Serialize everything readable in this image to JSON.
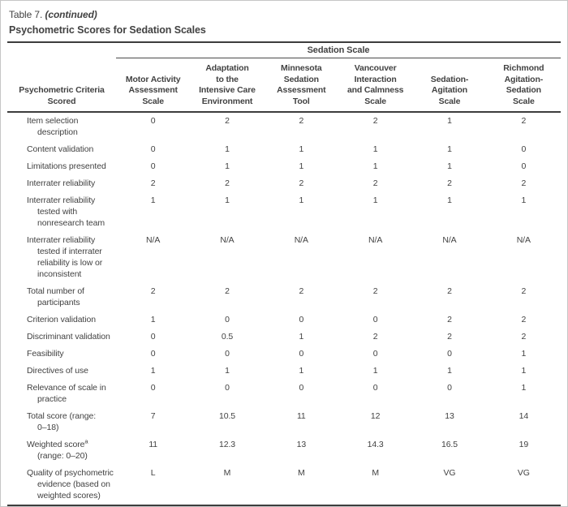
{
  "caption": {
    "label": "Table 7.",
    "continued": "(continued)",
    "title": "Psychometric Scores for Sedation Scales"
  },
  "table": {
    "span_header": "Sedation Scale",
    "criteria_header_lines": [
      "Psychometric Criteria",
      "Scored"
    ],
    "columns": [
      {
        "lines": [
          "Motor Activity",
          "Assessment",
          "Scale"
        ]
      },
      {
        "lines": [
          "Adaptation",
          "to the",
          "Intensive Care",
          "Environment"
        ]
      },
      {
        "lines": [
          "Minnesota",
          "Sedation",
          "Assessment",
          "Tool"
        ]
      },
      {
        "lines": [
          "Vancouver",
          "Interaction",
          "and Calmness",
          "Scale"
        ]
      },
      {
        "lines": [
          "Sedation-",
          "Agitation",
          "Scale"
        ]
      },
      {
        "lines": [
          "Richmond",
          "Agitation-",
          "Sedation",
          "Scale"
        ]
      }
    ],
    "rows": [
      {
        "criteria_lines": [
          "Item selection",
          "description"
        ],
        "values": [
          "0",
          "2",
          "2",
          "2",
          "1",
          "2"
        ]
      },
      {
        "criteria_lines": [
          "Content validation"
        ],
        "values": [
          "0",
          "1",
          "1",
          "1",
          "1",
          "0"
        ]
      },
      {
        "criteria_lines": [
          "Limitations presented"
        ],
        "values": [
          "0",
          "1",
          "1",
          "1",
          "1",
          "0"
        ]
      },
      {
        "criteria_lines": [
          "Interrater reliability"
        ],
        "values": [
          "2",
          "2",
          "2",
          "2",
          "2",
          "2"
        ]
      },
      {
        "criteria_lines": [
          "Interrater reliability",
          "tested with",
          "nonresearch team"
        ],
        "values": [
          "1",
          "1",
          "1",
          "1",
          "1",
          "1"
        ]
      },
      {
        "criteria_lines": [
          "Interrater reliability",
          "tested if interrater",
          "reliability is low or",
          "inconsistent"
        ],
        "values": [
          "N/A",
          "N/A",
          "N/A",
          "N/A",
          "N/A",
          "N/A"
        ]
      },
      {
        "criteria_lines": [
          "Total number of",
          "participants"
        ],
        "values": [
          "2",
          "2",
          "2",
          "2",
          "2",
          "2"
        ]
      },
      {
        "criteria_lines": [
          "Criterion validation"
        ],
        "values": [
          "1",
          "0",
          "0",
          "0",
          "2",
          "2"
        ]
      },
      {
        "criteria_lines": [
          "Discriminant validation"
        ],
        "values": [
          "0",
          "0.5",
          "1",
          "2",
          "2",
          "2"
        ]
      },
      {
        "criteria_lines": [
          "Feasibility"
        ],
        "values": [
          "0",
          "0",
          "0",
          "0",
          "0",
          "1"
        ]
      },
      {
        "criteria_lines": [
          "Directives of use"
        ],
        "values": [
          "1",
          "1",
          "1",
          "1",
          "1",
          "1"
        ]
      },
      {
        "criteria_lines": [
          "Relevance of scale in",
          "practice"
        ],
        "values": [
          "0",
          "0",
          "0",
          "0",
          "0",
          "1"
        ]
      },
      {
        "criteria_lines": [
          "Total score (range:",
          "0–18)"
        ],
        "values": [
          "7",
          "10.5",
          "11",
          "12",
          "13",
          "14"
        ]
      },
      {
        "criteria_lines": [
          "Weighted score",
          "(range: 0–20)"
        ],
        "line1_superscript": "a",
        "values": [
          "11",
          "12.3",
          "13",
          "14.3",
          "16.5",
          "19"
        ]
      },
      {
        "criteria_lines": [
          "Quality of psychometric",
          "evidence (based on",
          "weighted scores)"
        ],
        "values": [
          "L",
          "M",
          "M",
          "M",
          "VG",
          "VG"
        ]
      }
    ]
  },
  "colors": {
    "text": "#424242",
    "rule": "#3d3d3d",
    "frame": "#c6c6c6"
  }
}
